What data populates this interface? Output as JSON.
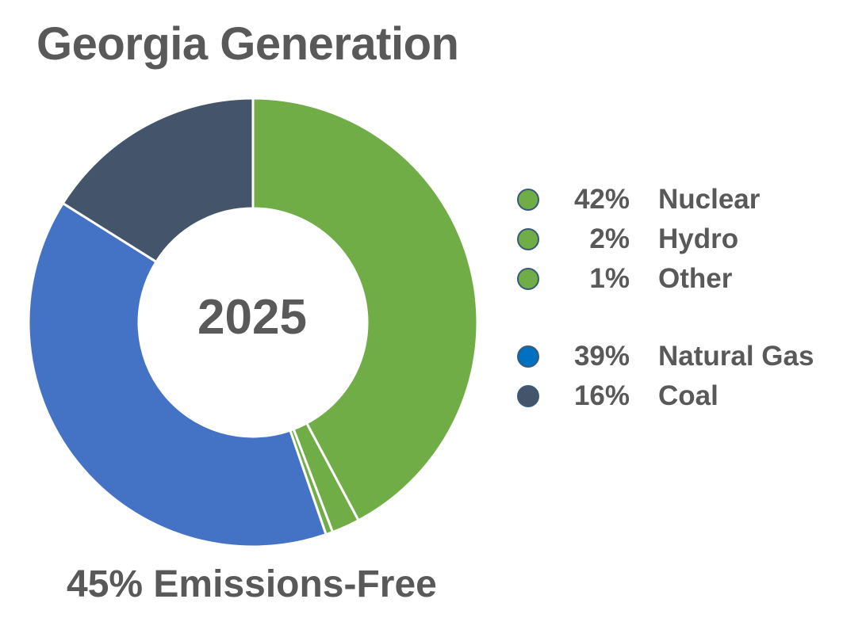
{
  "title": "Georgia Generation",
  "center_label": "2025",
  "footer": "45% Emissions-Free",
  "chart_data": {
    "type": "pie",
    "variant": "donut",
    "title": "Georgia Generation",
    "center_text": "2025",
    "slices": [
      {
        "label": "Nuclear",
        "value": 42,
        "pct_text": "42%",
        "color": "#70ad47"
      },
      {
        "label": "Hydro",
        "value": 2,
        "pct_text": "2%",
        "color": "#70ad47"
      },
      {
        "label": "Other",
        "value": 0.5,
        "pct_text": "1%",
        "color": "#70ad47"
      },
      {
        "label": "Natural Gas",
        "value": 39,
        "pct_text": "39%",
        "color": "#4472c4"
      },
      {
        "label": "Coal",
        "value": 16,
        "pct_text": "16%",
        "color": "#44546a"
      }
    ],
    "legend_position": "right"
  },
  "legend": [
    {
      "pct": "42%",
      "name": "Nuclear",
      "marker_color": "#70ad47"
    },
    {
      "pct": "2%",
      "name": "Hydro",
      "marker_color": "#70ad47"
    },
    {
      "pct": "1%",
      "name": "Other",
      "marker_color": "#70ad47"
    },
    {
      "pct": "39%",
      "name": "Natural Gas",
      "marker_color": "#0070c0"
    },
    {
      "pct": "16%",
      "name": "Coal",
      "marker_color": "#44546a"
    }
  ]
}
